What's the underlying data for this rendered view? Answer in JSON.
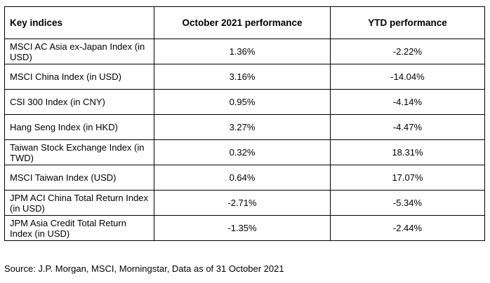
{
  "table": {
    "headers": [
      "Key indices",
      "October 2021 performance",
      "YTD performance"
    ],
    "rows": [
      {
        "name": "MSCI AC Asia ex-Japan Index (in USD)",
        "october": "1.36%",
        "ytd": "-2.22%"
      },
      {
        "name": "MSCI China Index (in USD)",
        "october": "3.16%",
        "ytd": "-14.04%"
      },
      {
        "name": "CSI 300 Index (in CNY)",
        "october": "0.95%",
        "ytd": "-4.14%"
      },
      {
        "name": "Hang Seng Index (in HKD)",
        "october": "3.27%",
        "ytd": "-4.47%"
      },
      {
        "name": "Taiwan Stock Exchange Index (in TWD)",
        "october": "0.32%",
        "ytd": "18.31%"
      },
      {
        "name": "MSCI Taiwan Index (USD)",
        "october": "0.64%",
        "ytd": "17.07%"
      },
      {
        "name": "JPM ACI China Total Return Index (in USD)",
        "october": "-2.71%",
        "ytd": "-5.34%"
      },
      {
        "name": "JPM Asia Credit Total Return Index (in USD)",
        "october": "-1.35%",
        "ytd": "-2.44%"
      }
    ]
  },
  "source": "Source: J.P. Morgan, MSCI, Morningstar, Data as of 31 October 2021"
}
